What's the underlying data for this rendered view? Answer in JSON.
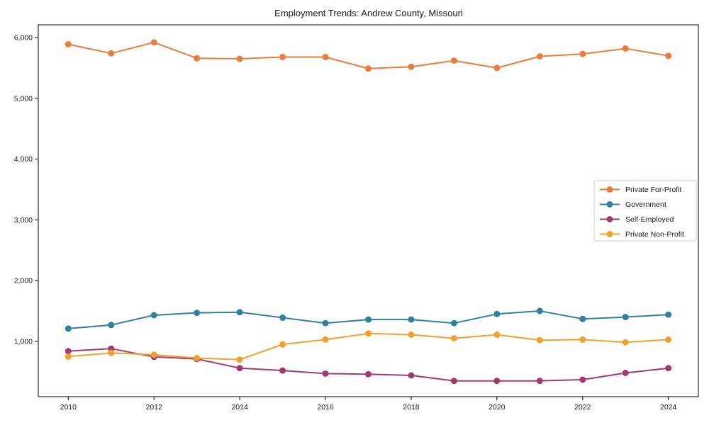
{
  "figure": {
    "background": "#ffffff",
    "axis_color": "#000000",
    "text_color": "#1a1a1a",
    "legend_border_color": "#cccccc",
    "legend_background": "#ffffff"
  },
  "chart_data": {
    "type": "line",
    "title": "Employment Trends: Andrew County, Missouri",
    "xlabel": "",
    "ylabel": "",
    "x": [
      2010,
      2011,
      2012,
      2013,
      2014,
      2015,
      2016,
      2017,
      2018,
      2019,
      2020,
      2021,
      2022,
      2023,
      2024
    ],
    "series": [
      {
        "name": "Private For-Profit",
        "color": "#E87D3E",
        "values": [
          5890,
          5740,
          5920,
          5660,
          5650,
          5680,
          5680,
          5490,
          5520,
          5620,
          5500,
          5690,
          5730,
          5820,
          5700
        ]
      },
      {
        "name": "Government",
        "color": "#2F819F",
        "values": [
          1210,
          1270,
          1430,
          1470,
          1480,
          1390,
          1300,
          1360,
          1360,
          1300,
          1450,
          1500,
          1370,
          1400,
          1440
        ]
      },
      {
        "name": "Self-Employed",
        "color": "#A23A72",
        "values": [
          840,
          880,
          745,
          710,
          560,
          520,
          470,
          460,
          440,
          350,
          350,
          350,
          370,
          480,
          560
        ]
      },
      {
        "name": "Private Non-Profit",
        "color": "#F0A02C",
        "values": [
          750,
          810,
          780,
          725,
          700,
          950,
          1030,
          1130,
          1110,
          1050,
          1110,
          1020,
          1030,
          985,
          1030
        ]
      }
    ],
    "xlim": [
      2009.3,
      2024.7
    ],
    "ylim": [
      90,
      6210
    ],
    "xticks": {
      "values": [
        2010,
        2012,
        2014,
        2016,
        2018,
        2020,
        2022,
        2024
      ],
      "labels": [
        "2010",
        "2012",
        "2014",
        "2016",
        "2018",
        "2020",
        "2022",
        "2024"
      ]
    },
    "yticks": {
      "values": [
        1000,
        2000,
        3000,
        4000,
        5000,
        6000
      ],
      "labels": [
        "1,000",
        "2,000",
        "3,000",
        "4,000",
        "5,000",
        "6,000"
      ]
    },
    "grid": false,
    "legend_position": "center-right",
    "marker": "circle"
  }
}
